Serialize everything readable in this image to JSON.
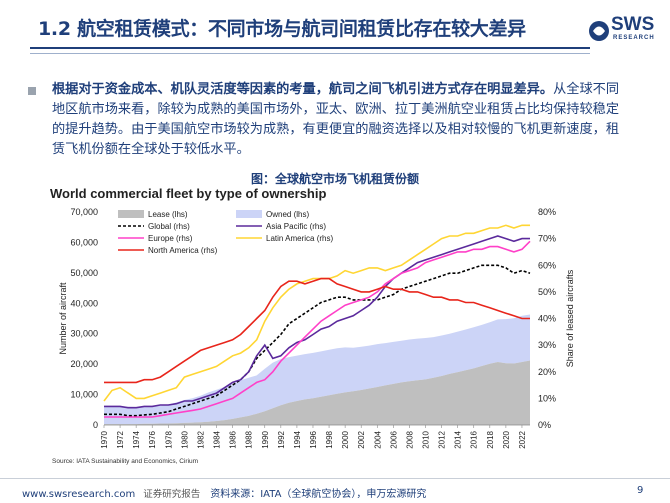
{
  "header": {
    "title": "1.2 航空租赁模式：不同市场与航司间租赁比存在较大差异",
    "logo_text": "SWS",
    "logo_sub": "RESEARCH"
  },
  "summary": {
    "bold": "根据对于资金成本、机队灵活度等因素的考量，航司之间飞机引进方式存在明显差异。",
    "body": "从全球不同地区航市场来看，除较为成熟的美国市场外，亚太、欧洲、拉丁美洲航空业租赁占比均保持较稳定的提升趋势。由于美国航空市场较为成熟，有更便宜的融资选择以及相对较慢的飞机更新速度，租赁飞机份额在全球处于较低水平。"
  },
  "figure": {
    "caption": "图：全球航空市场飞机租赁份额",
    "source": "Source: IATA Sustainability and Economics, Cirium"
  },
  "chart_data": {
    "type": "area",
    "title": "World commercial fleet by type of ownership",
    "xlabel": "",
    "ylabel_left": "Number of aircraft",
    "ylabel_right": "Share of leased aircrafts",
    "ylim_left": [
      0,
      70000
    ],
    "ylim_right": [
      0,
      80
    ],
    "yticks_left": [
      "0",
      "10,000",
      "20,000",
      "30,000",
      "40,000",
      "50,000",
      "60,000",
      "70,000"
    ],
    "yticks_right": [
      "0%",
      "10%",
      "20%",
      "30%",
      "40%",
      "50%",
      "60%",
      "70%",
      "80%"
    ],
    "x_years": [
      1970,
      1971,
      1972,
      1973,
      1974,
      1975,
      1976,
      1977,
      1978,
      1979,
      1980,
      1981,
      1982,
      1983,
      1984,
      1985,
      1986,
      1987,
      1988,
      1989,
      1990,
      1991,
      1992,
      1993,
      1994,
      1995,
      1996,
      1997,
      1998,
      1999,
      2000,
      2001,
      2002,
      2003,
      2004,
      2005,
      2006,
      2007,
      2008,
      2009,
      2010,
      2011,
      2012,
      2013,
      2014,
      2015,
      2016,
      2017,
      2018,
      2019,
      2020,
      2021,
      2022,
      2023
    ],
    "x_tick_labels": [
      "1970",
      "1972",
      "1974",
      "1976",
      "1978",
      "1980",
      "1982",
      "1984",
      "1986",
      "1988",
      "1990",
      "1992",
      "1994",
      "1996",
      "1998",
      "2000",
      "2002",
      "2004",
      "2006",
      "2008",
      "2010",
      "2012",
      "2014",
      "2016",
      "2018",
      "2020",
      "2022"
    ],
    "series": [
      {
        "name": "Lease (lhs)",
        "axis": "left",
        "kind": "area",
        "color": "#bfbfbf",
        "values": [
          300,
          300,
          300,
          300,
          300,
          400,
          400,
          500,
          500,
          600,
          700,
          800,
          900,
          1100,
          1300,
          1600,
          2000,
          2500,
          3000,
          3700,
          4500,
          5500,
          6500,
          7300,
          7900,
          8400,
          8800,
          9300,
          9800,
          10300,
          10700,
          11100,
          11500,
          12000,
          12500,
          13000,
          13500,
          14000,
          14400,
          14700,
          15000,
          15500,
          16100,
          16800,
          17400,
          18000,
          18600,
          19400,
          20100,
          20700,
          20300,
          20200,
          20700,
          21200
        ]
      },
      {
        "name": "Owned (lhs)",
        "axis": "left",
        "kind": "area",
        "color": "#ccd4f7",
        "values": [
          5800,
          5800,
          5700,
          5700,
          5600,
          5600,
          5700,
          5800,
          6200,
          6800,
          7500,
          8000,
          8700,
          9600,
          10300,
          10900,
          11500,
          12200,
          12500,
          12600,
          14000,
          15000,
          15200,
          15000,
          14900,
          14900,
          14900,
          14900,
          14900,
          14900,
          14800,
          14300,
          14200,
          14100,
          14100,
          13900,
          13800,
          13700,
          13700,
          13700,
          13600,
          13400,
          13300,
          13200,
          13300,
          13400,
          13500,
          13500,
          13700,
          14000,
          14500,
          14900,
          15200,
          15100
        ]
      },
      {
        "name": "Global (rhs)",
        "axis": "right",
        "kind": "line",
        "color": "#000000",
        "dash": true,
        "values": [
          4,
          4,
          4,
          3.5,
          3.5,
          3.8,
          4,
          4.5,
          5,
          6,
          7,
          8,
          9,
          10,
          11,
          13,
          15,
          17,
          20,
          25,
          28,
          31,
          34,
          38,
          40,
          42,
          44,
          46,
          47,
          48,
          48,
          47,
          47,
          47,
          47,
          48,
          49,
          51,
          52,
          53,
          54,
          55,
          56,
          57,
          57,
          58,
          59,
          60,
          60,
          60,
          59,
          57,
          58,
          57
        ]
      },
      {
        "name": "Asia Pacific (rhs)",
        "axis": "right",
        "kind": "line",
        "color": "#5b2a9c",
        "values": [
          7,
          7,
          7,
          6.5,
          6.5,
          7,
          7,
          7.5,
          7.5,
          8,
          9,
          9,
          10,
          11,
          12,
          14,
          16,
          17,
          20,
          26,
          30,
          25,
          26,
          29,
          31,
          32,
          34,
          36,
          37,
          39,
          40,
          41,
          43,
          45,
          48,
          52,
          55,
          57,
          59,
          61,
          62,
          63,
          64,
          65,
          66,
          67,
          68,
          69,
          70,
          71,
          70,
          69,
          70,
          70
        ]
      },
      {
        "name": "Europe (rhs)",
        "axis": "right",
        "kind": "line",
        "color": "#ff40c8",
        "values": [
          3,
          3,
          3,
          3,
          3,
          3,
          3,
          3.5,
          4,
          4.5,
          5,
          5.5,
          6,
          7,
          8,
          9,
          10,
          12,
          14,
          16,
          17,
          20,
          24,
          27,
          30,
          33,
          36,
          39,
          41,
          43,
          45,
          46,
          47,
          48,
          50,
          53,
          55,
          57,
          58,
          59,
          61,
          62,
          63,
          64,
          65,
          65,
          66,
          66,
          67,
          67,
          66,
          65,
          66,
          69
        ]
      },
      {
        "name": "Latin America (rhs)",
        "axis": "right",
        "kind": "line",
        "color": "#ffd633",
        "values": [
          9,
          13,
          14,
          12,
          10,
          10,
          11,
          12,
          13,
          14,
          18,
          19,
          20,
          21,
          22,
          24,
          26,
          27,
          29,
          32,
          39,
          44,
          48,
          51,
          53,
          54,
          55,
          55,
          55,
          56,
          58,
          57,
          58,
          59,
          59,
          58,
          59,
          60,
          62,
          64,
          66,
          68,
          70,
          71,
          71,
          72,
          72,
          73,
          74,
          74,
          75,
          74,
          75,
          75
        ]
      },
      {
        "name": "North America (rhs)",
        "axis": "right",
        "kind": "line",
        "color": "#e8251b",
        "values": [
          16,
          16,
          16,
          16,
          16,
          17,
          17,
          18,
          20,
          22,
          24,
          26,
          28,
          29,
          30,
          31,
          32,
          34,
          37,
          40,
          43,
          48,
          52,
          54,
          54,
          53,
          54,
          55,
          55,
          53,
          52,
          51,
          50,
          50,
          51,
          52,
          51,
          51,
          50,
          50,
          49,
          48,
          48,
          47,
          47,
          46,
          46,
          45,
          44,
          43,
          42,
          41,
          40,
          40
        ]
      }
    ]
  },
  "footer": {
    "website": "www.swsresearch.com",
    "report_type": "证券研究报告",
    "data_source": "资料来源：IATA（全球航空协会），申万宏源研究",
    "page": "9"
  }
}
